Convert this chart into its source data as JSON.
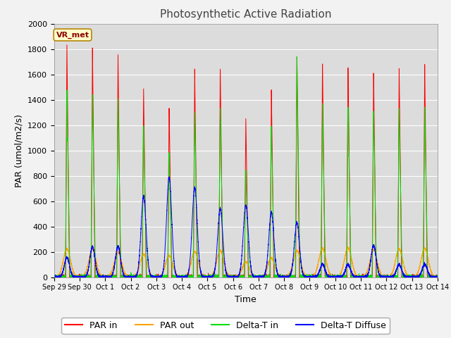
{
  "title": "Photosynthetic Active Radiation",
  "ylabel": "PAR (umol/m2/s)",
  "xlabel": "Time",
  "annotation": "VR_met",
  "ylim": [
    0,
    2000
  ],
  "fig_bg": "#f2f2f2",
  "plot_bg": "#dcdcdc",
  "colors": {
    "PAR_in": "#ff0000",
    "PAR_out": "#ffa500",
    "Delta_T_in": "#00dd00",
    "Delta_T_Diffuse": "#0000ff"
  },
  "legend_labels": [
    "PAR in",
    "PAR out",
    "Delta-T in",
    "Delta-T Diffuse"
  ],
  "tick_labels": [
    "Sep 29",
    "Sep 30",
    "Oct 1",
    "Oct 2",
    "Oct 3",
    "Oct 4",
    "Oct 5",
    "Oct 6",
    "Oct 7",
    "Oct 8",
    "Oct 9",
    "Oct 10",
    "Oct 11",
    "Oct 12",
    "Oct 13",
    "Oct 14"
  ],
  "n_days": 15,
  "par_in_peaks": [
    1840,
    1810,
    1760,
    1490,
    1350,
    1640,
    1660,
    1270,
    1490,
    1760,
    1700,
    1680,
    1630,
    1650,
    1680
  ],
  "par_out_peaks": [
    220,
    220,
    195,
    180,
    170,
    200,
    210,
    120,
    150,
    210,
    225,
    230,
    215,
    220,
    225
  ],
  "delta_in_peaks": [
    1460,
    1450,
    1410,
    1200,
    980,
    1310,
    1340,
    850,
    1200,
    1760,
    1370,
    1365,
    1310,
    1330,
    1350
  ],
  "delta_diff_peaks": [
    155,
    240,
    240,
    640,
    790,
    705,
    540,
    570,
    510,
    430,
    100,
    100,
    250,
    100,
    100
  ]
}
